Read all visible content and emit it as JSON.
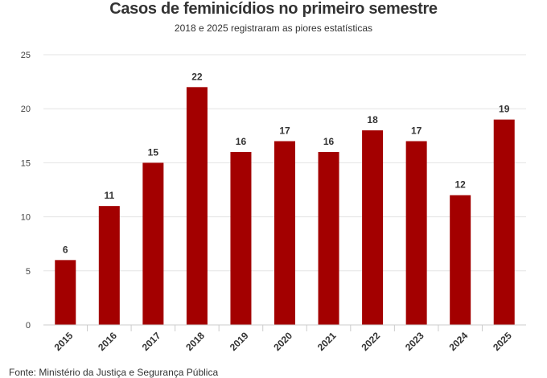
{
  "chart_data": {
    "type": "bar",
    "title": "Casos de feminicídios no primeiro semestre",
    "subtitle": "2018 e 2025 registraram as piores estatísticas",
    "categories": [
      "2015",
      "2016",
      "2017",
      "2018",
      "2019",
      "2020",
      "2021",
      "2022",
      "2023",
      "2024",
      "2025"
    ],
    "values": [
      6,
      11,
      15,
      22,
      16,
      17,
      16,
      18,
      17,
      12,
      19
    ],
    "ylim": [
      0,
      25
    ],
    "yticks": [
      0,
      5,
      10,
      15,
      20,
      25
    ],
    "grid": true,
    "bar_color": "#a30000",
    "data_labels": true
  },
  "source": "Fonte: Ministério da Justiça e Segurança Pública"
}
